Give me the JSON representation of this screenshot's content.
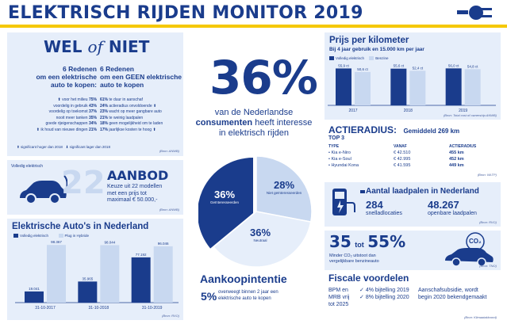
{
  "header": {
    "title": "ELEKTRISCH RIJDEN MONITOR 2019"
  },
  "wel_of_niet": {
    "title_wel": "WEL",
    "title_of": "of",
    "title_niet": "NIET",
    "left_heading": [
      "6 Redenen",
      "om een elektrische",
      "auto te kopen:"
    ],
    "right_heading": [
      "6 Redenen",
      "om een GEEN elektrische",
      "auto te kopen"
    ],
    "left_items": [
      {
        "text": "voor het milieu",
        "pct": "75%",
        "arrow": "up"
      },
      {
        "text": "voordelig in gebruik",
        "pct": "43%",
        "arrow": ""
      },
      {
        "text": "voordelig op toekomst",
        "pct": "37%",
        "arrow": ""
      },
      {
        "text": "nooit meer tanken",
        "pct": "35%",
        "arrow": ""
      },
      {
        "text": "goede rijeigenschappen",
        "pct": "34%",
        "arrow": ""
      },
      {
        "text": "ik houd van nieuwe dingen",
        "pct": "21%",
        "arrow": "up"
      }
    ],
    "right_items": [
      {
        "pct": "61%",
        "text": "te duur in aanschaf",
        "arrow": ""
      },
      {
        "pct": "24%",
        "text": "actieradius onvoldoende",
        "arrow": "up"
      },
      {
        "pct": "23%",
        "text": "wacht op meer gangbare auto",
        "arrow": ""
      },
      {
        "pct": "21%",
        "text": "te weinig laadpalen",
        "arrow": ""
      },
      {
        "pct": "18%",
        "text": "geen mogelijkheid om te laden",
        "arrow": ""
      },
      {
        "pct": "17%",
        "text": "jaarlijkse kosten te hoog",
        "arrow": "up"
      }
    ],
    "legend_up": "significant hoger dan 2018",
    "legend_down": "significant lager dan 2018",
    "source": "(Bron: ANWB)"
  },
  "interest": {
    "big_pct": "36%",
    "line1": "van de Nederlandse",
    "line2_bold": "consumenten",
    "line2_rest": " heeft interesse",
    "line3": "in elektrisch rijden",
    "pie": {
      "slices": [
        {
          "label": "Geïnteresseerden",
          "pct": "36%",
          "value": 36,
          "color": "#1a3c8c"
        },
        {
          "label": "Niet geïnteresseerden",
          "pct": "28%",
          "value": 28,
          "color": "#c8d8f0"
        },
        {
          "label": "Neutraal",
          "pct": "36%",
          "value": 36,
          "color": "#e6eefa"
        }
      ]
    }
  },
  "aankoop": {
    "title": "Aankoopintentie",
    "pct": "5%",
    "text": [
      "overweegt binnen 2 jaar een",
      "elektrische auto te kopen"
    ]
  },
  "aanbod": {
    "tag": "Volledig elektrisch",
    "number": "22",
    "title": "AANBOD",
    "text": [
      "Keuze uit 22 modellen",
      "met een prijs tot",
      "maximaal € 50.000,-"
    ],
    "source": "(Bron: ANWB)"
  },
  "autos_nl": {
    "title": "Elektrische Auto's in Nederland",
    "legend": [
      "Volledig elektrisch",
      "Plug in Hybride"
    ],
    "chart_data": {
      "type": "bar",
      "categories": [
        "31-10-2017",
        "31-10-2018",
        "31-10-2019"
      ],
      "series": [
        {
          "name": "Volledig elektrisch",
          "values": [
            19041,
            35965,
            77192
          ],
          "labels": [
            "19.041",
            "35.965",
            "77.192"
          ],
          "color": "#1a3c8c"
        },
        {
          "name": "Plug in Hybride",
          "values": [
            98367,
            98044,
            96046
          ],
          "labels": [
            "98.367",
            "98.044",
            "96.046"
          ],
          "color": "#c8d8f0"
        }
      ],
      "ylim": [
        0,
        100000
      ]
    },
    "source": "(Bron: RVO)"
  },
  "prijs": {
    "title": "Prijs per kilometer",
    "subtitle": "Bij 4 jaar gebruik en 15.000 km per jaar",
    "legend": [
      "Volledig elektrisch",
      "Benzine"
    ],
    "chart_data": {
      "type": "bar",
      "categories": [
        "2017",
        "2018",
        "2019"
      ],
      "series": [
        {
          "name": "Volledig elektrisch",
          "values": [
            55.9,
            55.6,
            56.0
          ],
          "labels": [
            "55,9 ct",
            "55,6 ct",
            "56,0 ct"
          ],
          "color": "#1a3c8c"
        },
        {
          "name": "Benzine",
          "values": [
            50.6,
            52.4,
            54.8
          ],
          "labels": [
            "50,6 ct",
            "52,4 ct",
            "54,8 ct"
          ],
          "color": "#c8d8f0"
        }
      ],
      "ylim": [
        0,
        60
      ]
    },
    "source": "(Bron: Total cost of ownership ANWB)"
  },
  "actieradius": {
    "title": "ACTIERADIUS:",
    "gemiddeld": "Gemiddeld 269 km",
    "top3": "TOP 3",
    "headers": [
      "TYPE",
      "VANAF",
      "ACTIERADIUS"
    ],
    "rows": [
      [
        "Kia e-Niro",
        "€ 42.510",
        "455 km"
      ],
      [
        "Kia e-Soul",
        "€ 42.995",
        "452 km"
      ],
      [
        "Hyundai Kona",
        "€ 41.595",
        "449 km"
      ]
    ],
    "source": "(Bron: WLTP)"
  },
  "laadpalen": {
    "title": "Aantal laadpalen in Nederland",
    "snel_num": "284",
    "snel_label": "snelladlocaties",
    "open_num": "48.267",
    "open_label": "openbare laadpalen",
    "source": "(Bron: RVO)"
  },
  "co2": {
    "from": "35",
    "tot": "tot",
    "to": "55%",
    "text": [
      "Minder CO₂ uitstoot dan",
      "vergelijkbare benzineauto"
    ],
    "bubble": "CO₂",
    "source": "(Bron: TNO)"
  },
  "fiscaal": {
    "title": "Fiscale voordelen",
    "col1": [
      "BPM en",
      "MRB vrij",
      "tot 2025"
    ],
    "col2": [
      "4% bijtelling 2019",
      "8% bijtelling 2020"
    ],
    "col3": [
      "Aanschafsubsidie, wordt",
      "begin 2020 bekendgemaakt"
    ],
    "source": "(Bron: Klimaatakkoord)"
  },
  "colors": {
    "navy": "#1a3c8c",
    "light": "#c8d8f0",
    "panel": "#e6eefa",
    "yellow": "#f5c800"
  }
}
